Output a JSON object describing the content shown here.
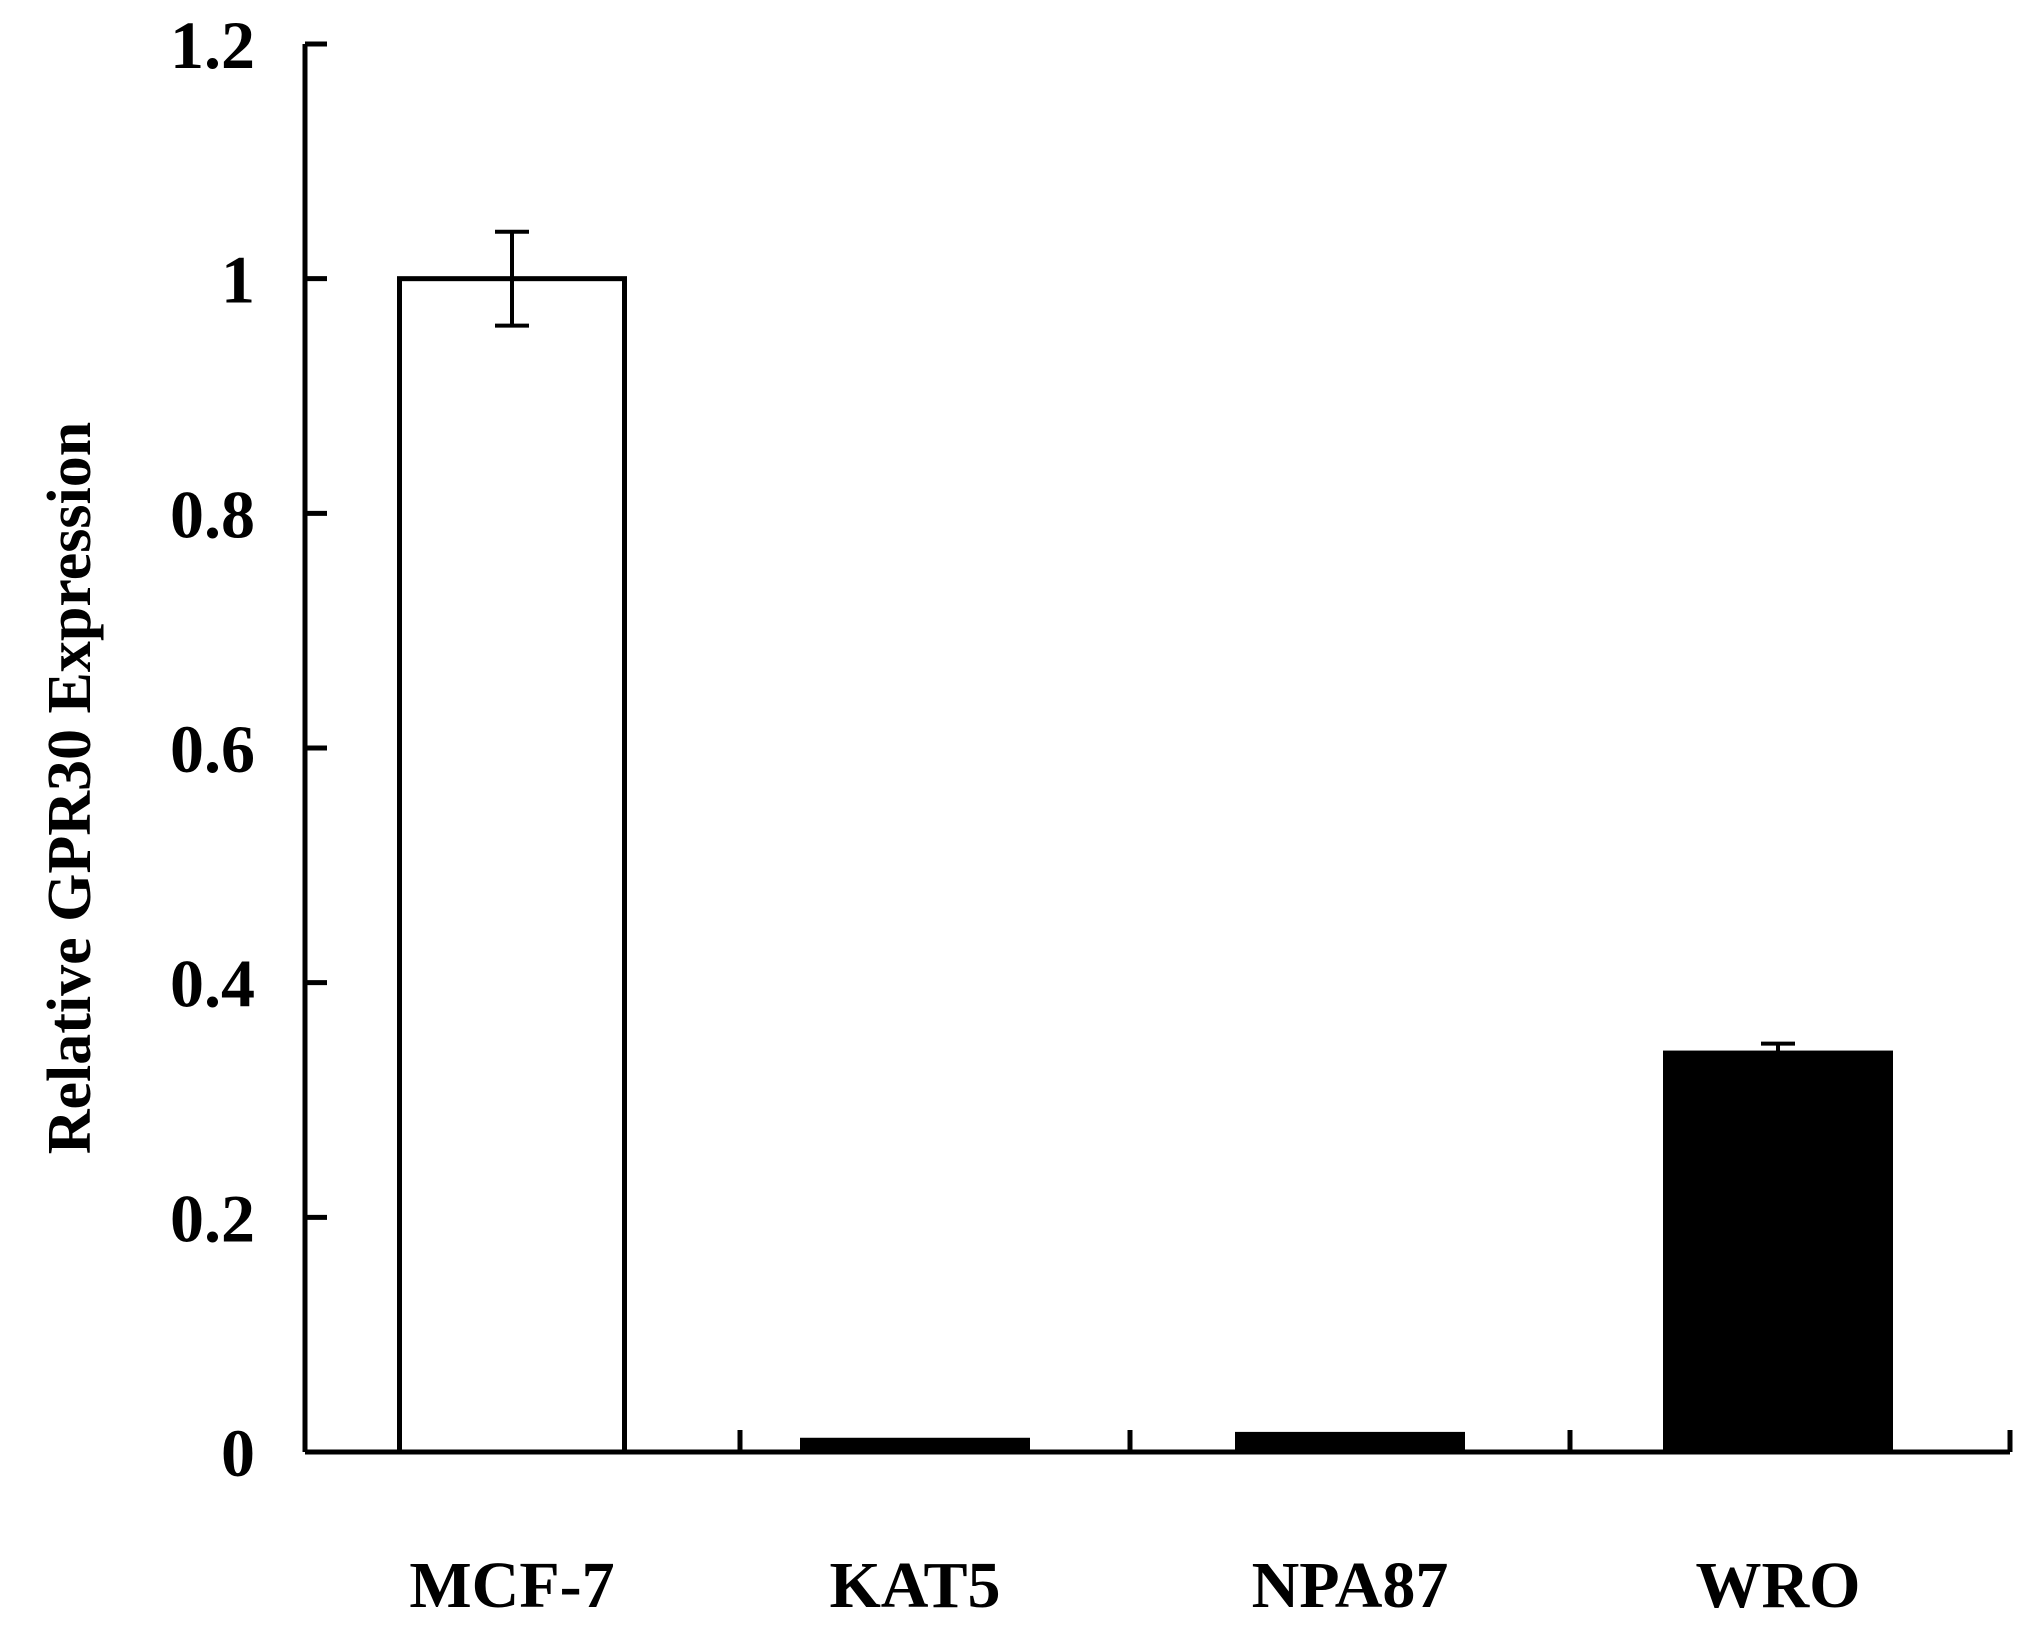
{
  "chart_data": {
    "type": "bar",
    "title": "",
    "xlabel": "",
    "ylabel": "Relative GPR30 Expression",
    "ylim": [
      0,
      1.2
    ],
    "yticks": [
      0,
      0.2,
      0.4,
      0.6,
      0.8,
      1,
      1.2
    ],
    "ytick_labels": [
      "0",
      "0.2",
      "0.4",
      "0.6",
      "0.8",
      "1",
      "1.2"
    ],
    "categories": [
      "MCF-7",
      "KAT5",
      "NPA87",
      "WRO"
    ],
    "values": [
      1.0,
      0.01,
      0.015,
      0.34
    ],
    "errors": [
      0.04,
      0.003,
      0.003,
      0.008
    ],
    "bar_colors": [
      "#ffffff",
      "#000000",
      "#000000",
      "#000000"
    ],
    "grid": false,
    "legend": "none"
  }
}
